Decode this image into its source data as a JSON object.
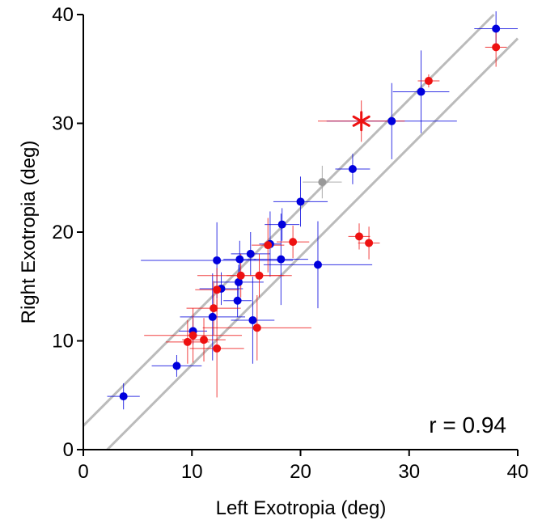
{
  "chart_data": {
    "type": "scatter",
    "title": "",
    "xlabel": "Left Exotropia (deg)",
    "ylabel": "Right Exotropia (deg)",
    "xlim": [
      0,
      40
    ],
    "ylim": [
      0,
      40
    ],
    "xticks": [
      "0",
      "10",
      "20",
      "30",
      "40"
    ],
    "yticks": [
      "0",
      "10",
      "20",
      "30",
      "40"
    ],
    "grid": false,
    "annotation": "r = 0.94",
    "colors": {
      "blue": "#0000dd",
      "red": "#ee1111",
      "gray": "#999999",
      "lines": "#bbbbbb"
    },
    "reference_lines": [
      {
        "intercept": 2.2,
        "slope": 1
      },
      {
        "intercept": -2.2,
        "slope": 1
      }
    ],
    "series": [
      {
        "color": "blue",
        "points": [
          {
            "x": 3.7,
            "y": 4.9,
            "xerr": 1.5,
            "yerr": 1.2
          },
          {
            "x": 8.6,
            "y": 7.7,
            "xerr": 2.3,
            "yerr": 1.0
          },
          {
            "x": 10.1,
            "y": 10.9,
            "xerr": 1.3,
            "yerr": 1.2
          },
          {
            "x": 11.9,
            "y": 12.2,
            "xerr": 3.0,
            "yerr": 4.0
          },
          {
            "x": 12.3,
            "y": 17.4,
            "xerr": 7.0,
            "yerr": 3.5
          },
          {
            "x": 12.7,
            "y": 14.8,
            "xerr": 2.0,
            "yerr": 1.5
          },
          {
            "x": 14.2,
            "y": 13.7,
            "xerr": 1.3,
            "yerr": 1.5
          },
          {
            "x": 14.3,
            "y": 15.4,
            "xerr": 2.3,
            "yerr": 1.6
          },
          {
            "x": 14.4,
            "y": 17.5,
            "xerr": 1.5,
            "yerr": 1.7
          },
          {
            "x": 15.4,
            "y": 18.0,
            "xerr": 1.8,
            "yerr": 2.0
          },
          {
            "x": 15.6,
            "y": 11.9,
            "xerr": 2.0,
            "yerr": 4.0
          },
          {
            "x": 17.2,
            "y": 18.9,
            "xerr": 1.0,
            "yerr": 3.0
          },
          {
            "x": 18.2,
            "y": 17.5,
            "xerr": 2.5,
            "yerr": 4.2
          },
          {
            "x": 18.3,
            "y": 20.7,
            "xerr": 1.6,
            "yerr": 1.5
          },
          {
            "x": 20.0,
            "y": 22.8,
            "xerr": 2.5,
            "yerr": 2.3
          },
          {
            "x": 21.6,
            "y": 17.0,
            "xerr": 5.0,
            "yerr": 4.0
          },
          {
            "x": 24.8,
            "y": 25.8,
            "xerr": 1.6,
            "yerr": 1.4
          },
          {
            "x": 28.4,
            "y": 30.2,
            "xerr": 6.0,
            "yerr": 3.5
          },
          {
            "x": 31.1,
            "y": 32.9,
            "xerr": 2.6,
            "yerr": 3.8
          },
          {
            "x": 38.0,
            "y": 38.7,
            "xerr": 2.0,
            "yerr": 1.6
          }
        ]
      },
      {
        "color": "red",
        "points": [
          {
            "x": 9.6,
            "y": 9.9,
            "xerr": 2.0,
            "yerr": 2.0
          },
          {
            "x": 10.1,
            "y": 10.5,
            "xerr": 4.5,
            "yerr": 2.5
          },
          {
            "x": 11.1,
            "y": 10.1,
            "xerr": 2.0,
            "yerr": 2.0
          },
          {
            "x": 12.0,
            "y": 13.0,
            "xerr": 2.5,
            "yerr": 2.5
          },
          {
            "x": 12.3,
            "y": 9.3,
            "xerr": 2.5,
            "yerr": 4.5
          },
          {
            "x": 12.3,
            "y": 14.7,
            "xerr": 2.0,
            "yerr": 2.0
          },
          {
            "x": 14.5,
            "y": 16.0,
            "xerr": 4.0,
            "yerr": 2.0
          },
          {
            "x": 16.0,
            "y": 11.2,
            "xerr": 5.0,
            "yerr": 3.0
          },
          {
            "x": 16.2,
            "y": 16.0,
            "xerr": 3.0,
            "yerr": 2.0
          },
          {
            "x": 17.0,
            "y": 18.8,
            "xerr": 1.5,
            "yerr": 2.5
          },
          {
            "x": 19.3,
            "y": 19.1,
            "xerr": 1.5,
            "yerr": 1.5
          },
          {
            "x": 25.4,
            "y": 19.6,
            "xerr": 1.0,
            "yerr": 1.2
          },
          {
            "x": 26.3,
            "y": 19.0,
            "xerr": 1.0,
            "yerr": 1.5
          },
          {
            "x": 31.8,
            "y": 33.9,
            "xerr": 1.0,
            "yerr": 0.6
          },
          {
            "x": 38.0,
            "y": 37.0,
            "xerr": 1.0,
            "yerr": 1.8
          }
        ]
      },
      {
        "color": "gray",
        "points": [
          {
            "x": 22.0,
            "y": 24.6,
            "xerr": 1.8,
            "yerr": 1.5
          }
        ]
      },
      {
        "color": "red",
        "marker": "asterisk",
        "points": [
          {
            "x": 25.6,
            "y": 30.2,
            "xerr": 4.0,
            "yerr": 1.9
          }
        ]
      }
    ]
  }
}
